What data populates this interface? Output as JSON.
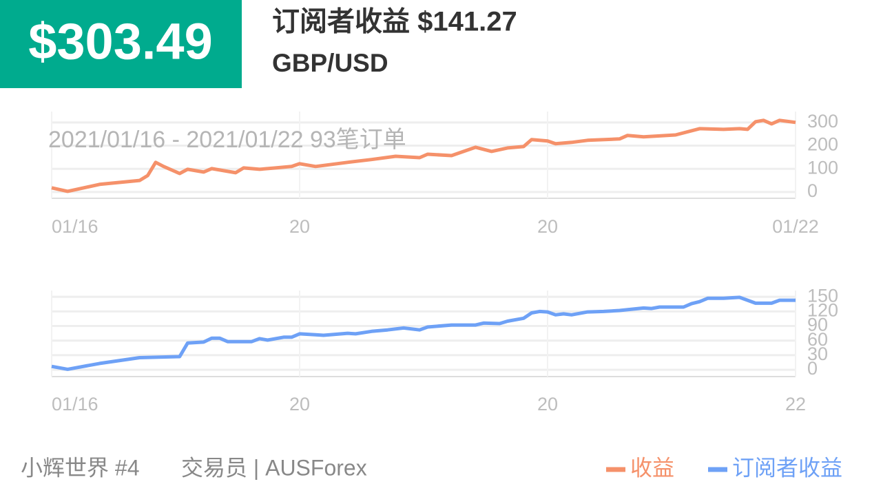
{
  "header": {
    "amount": "$303.49",
    "title": "订阅者收益 $141.27",
    "subtitle": "GBP/USD"
  },
  "footer": {
    "user": "小辉世界 #4",
    "role": "交易员 | AUSForex"
  },
  "chart_data": [
    {
      "type": "line",
      "annotation": "2021/01/16 - 2021/01/22  93笔订单",
      "x": [
        0,
        2,
        6,
        11,
        12,
        13,
        14,
        16,
        17,
        19,
        20,
        23,
        24,
        26,
        28,
        30,
        31,
        33,
        37,
        40,
        43,
        46,
        47,
        50,
        53,
        55,
        57,
        59,
        60,
        62,
        63,
        65,
        67,
        71,
        72,
        74,
        78,
        81,
        84,
        86,
        87,
        88,
        89,
        90,
        91,
        93
      ],
      "series": [
        {
          "name": "收益",
          "color": "#f5916a",
          "values": [
            18,
            3,
            33,
            50,
            71,
            128,
            110,
            80,
            98,
            86,
            101,
            83,
            104,
            98,
            104,
            110,
            122,
            110,
            128,
            140,
            154,
            148,
            163,
            157,
            193,
            175,
            190,
            196,
            226,
            220,
            208,
            214,
            223,
            229,
            244,
            238,
            246,
            273,
            270,
            273,
            270,
            303,
            309,
            294,
            309,
            300
          ]
        }
      ],
      "xlim": [
        0,
        93
      ],
      "xticks": [
        {
          "value": 0,
          "label": "01/16"
        },
        {
          "value": 31,
          "label": "20"
        },
        {
          "value": 62,
          "label": "20"
        },
        {
          "value": 93,
          "label": "01/22"
        }
      ],
      "ylim": [
        -27,
        347
      ],
      "yticks": [
        0,
        100,
        200,
        300
      ],
      "grid": true
    },
    {
      "type": "line",
      "x": [
        0,
        2,
        6,
        11,
        16,
        17,
        19,
        20,
        21,
        22,
        25,
        26,
        27,
        29,
        30,
        31,
        33,
        34,
        37,
        38,
        40,
        42,
        44,
        46,
        47,
        50,
        53,
        54,
        56,
        57,
        59,
        60,
        61,
        62,
        63,
        64,
        65,
        67,
        69,
        71,
        74,
        75,
        76,
        79,
        80,
        81,
        82,
        84,
        86,
        87,
        88,
        90,
        91,
        93
      ],
      "series": [
        {
          "name": "订阅者收益",
          "color": "#6ea1f6",
          "values": [
            7,
            1,
            13,
            25,
            27,
            55,
            57,
            65,
            65,
            58,
            58,
            64,
            61,
            67,
            67,
            74,
            72,
            71,
            75,
            74,
            79,
            82,
            86,
            82,
            88,
            92,
            92,
            96,
            95,
            100,
            106,
            117,
            120,
            119,
            113,
            115,
            113,
            119,
            120,
            122,
            127,
            126,
            129,
            129,
            136,
            140,
            147,
            147,
            149,
            143,
            137,
            137,
            143,
            143
          ]
        }
      ],
      "xlim": [
        0,
        93
      ],
      "xticks": [
        {
          "value": 0,
          "label": "01/16"
        },
        {
          "value": 31,
          "label": "20"
        },
        {
          "value": 62,
          "label": "20"
        },
        {
          "value": 93,
          "label": "22"
        }
      ],
      "ylim": [
        -14,
        163
      ],
      "yticks": [
        0,
        30,
        60,
        90,
        120,
        150
      ],
      "grid": true
    }
  ]
}
